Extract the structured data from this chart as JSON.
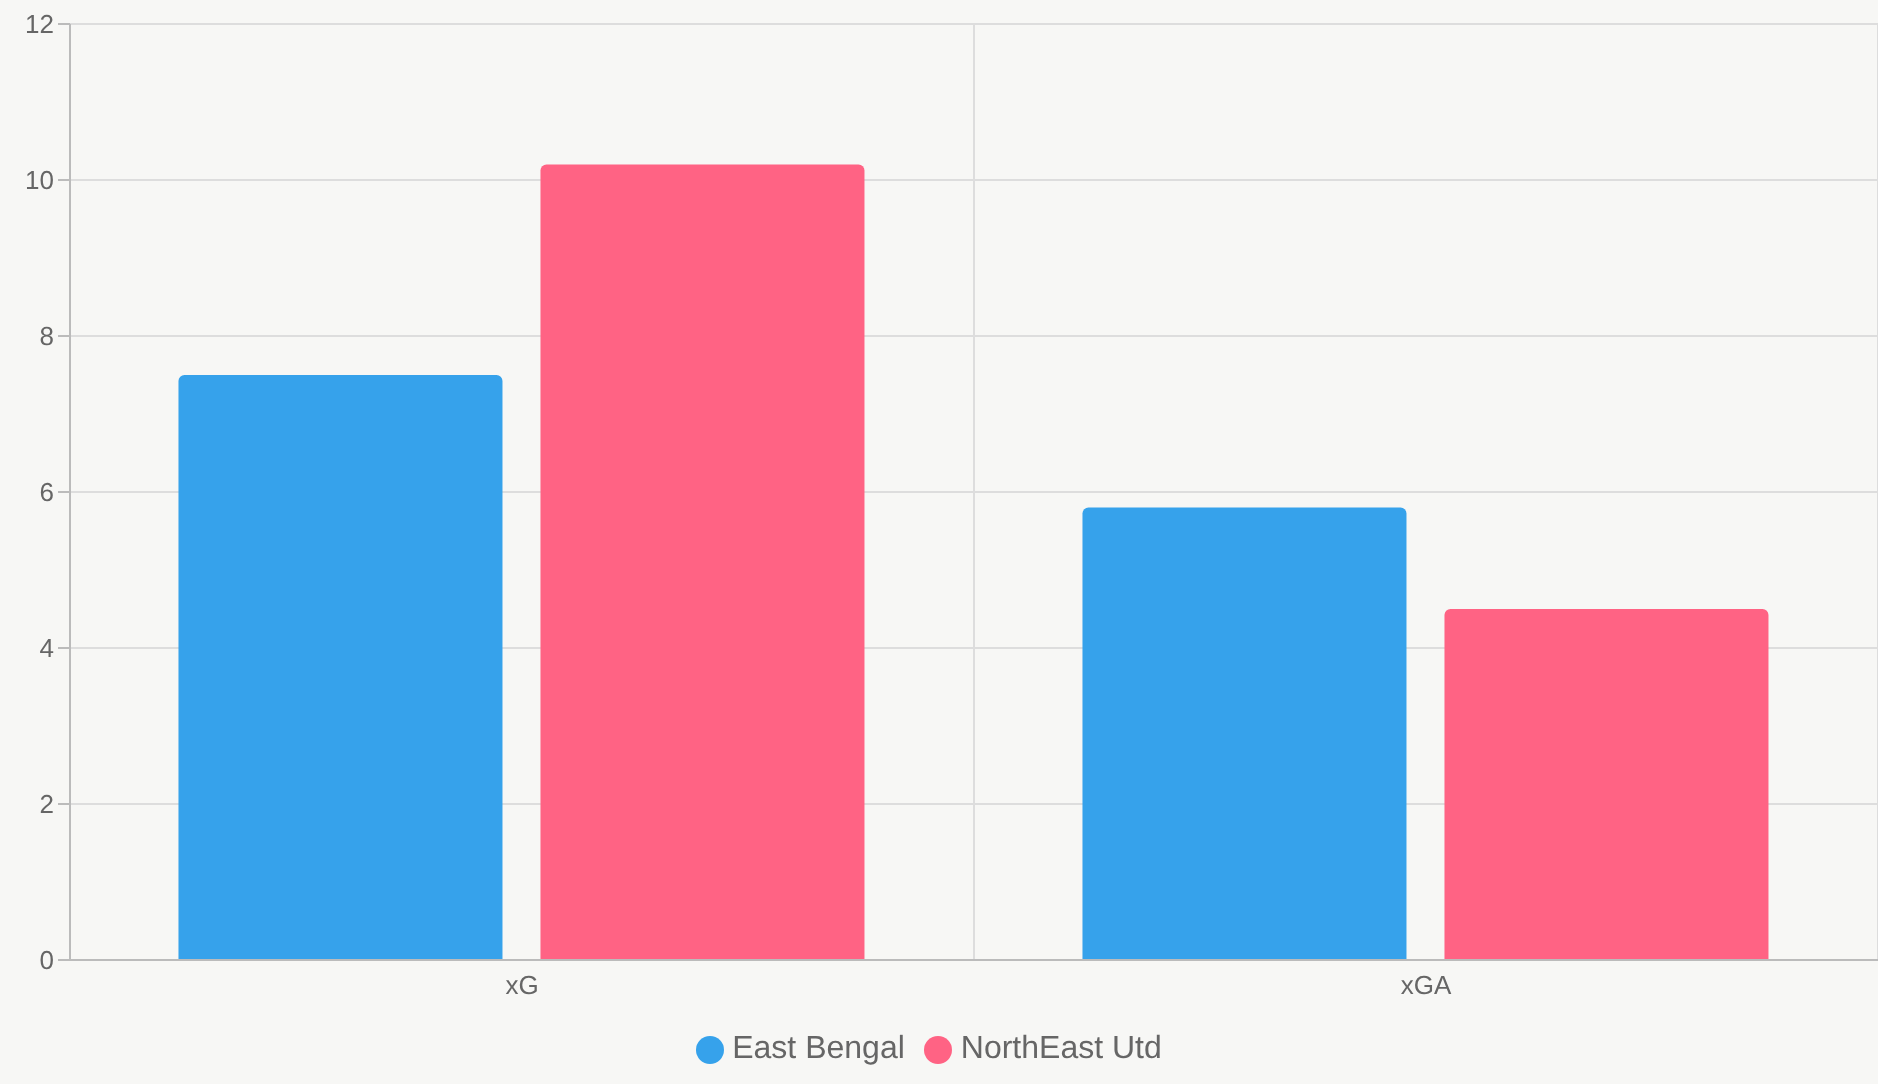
{
  "chart_data": {
    "type": "bar",
    "categories": [
      "xG",
      "xGA"
    ],
    "series": [
      {
        "name": "East Bengal",
        "color": "#36a2eb",
        "values": [
          7.5,
          5.8
        ]
      },
      {
        "name": "NorthEast Utd",
        "color": "#ff6384",
        "values": [
          10.2,
          4.5
        ]
      }
    ],
    "ylim": [
      0,
      12
    ],
    "yticks": [
      0,
      2,
      4,
      6,
      8,
      10,
      12
    ],
    "grid": true,
    "legend": "bottom"
  }
}
